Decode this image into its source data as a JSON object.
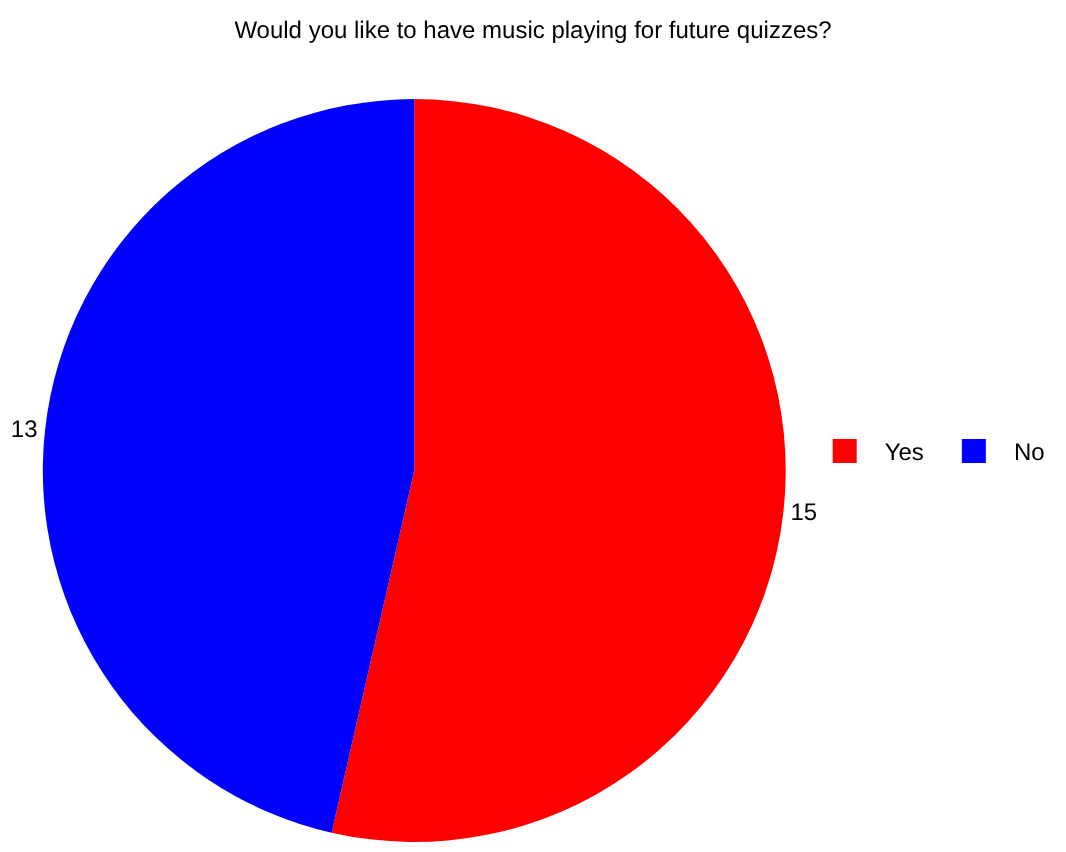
{
  "chart_data": {
    "type": "pie",
    "title": "Would you like to have music playing for future quizzes?",
    "categories": [
      "Yes",
      "No"
    ],
    "values": [
      15,
      13
    ],
    "colors": [
      "#ff0000",
      "#0000ff"
    ],
    "data_labels": true,
    "legend": "right"
  }
}
